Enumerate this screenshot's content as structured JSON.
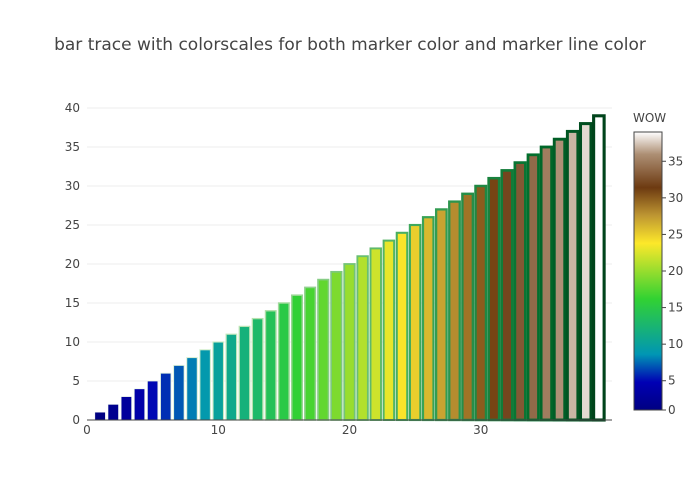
{
  "chart_data": {
    "type": "bar",
    "title": "bar trace with colorscales for both marker color and marker line color",
    "x": [
      1,
      2,
      3,
      4,
      5,
      6,
      7,
      8,
      9,
      10,
      11,
      12,
      13,
      14,
      15,
      16,
      17,
      18,
      19,
      20,
      21,
      22,
      23,
      24,
      25,
      26,
      27,
      28,
      29,
      30,
      31,
      32,
      33,
      34,
      35,
      36,
      37,
      38,
      39
    ],
    "values": [
      1,
      2,
      3,
      4,
      5,
      6,
      7,
      8,
      9,
      10,
      11,
      12,
      13,
      14,
      15,
      16,
      17,
      18,
      19,
      20,
      21,
      22,
      23,
      24,
      25,
      26,
      27,
      28,
      29,
      30,
      31,
      32,
      33,
      34,
      35,
      36,
      37,
      38,
      39
    ],
    "xlim": [
      0,
      40
    ],
    "ylim": [
      0,
      40
    ],
    "x_ticks": [
      "0",
      "10",
      "20",
      "30"
    ],
    "y_ticks": [
      "0",
      "5",
      "10",
      "15",
      "20",
      "25",
      "30",
      "35",
      "40"
    ],
    "grid": true,
    "marker_colorscale": {
      "name": "Earth",
      "stops": [
        [
          0,
          "#000082"
        ],
        [
          0.1,
          "#0000b4"
        ],
        [
          0.2,
          "#0096b4"
        ],
        [
          0.4,
          "#32d232"
        ],
        [
          0.6,
          "#fde82a"
        ],
        [
          0.7,
          "#be9632"
        ],
        [
          0.8,
          "#6d3a11"
        ],
        [
          0.92,
          "#ad8f74"
        ],
        [
          1,
          "#ffffff"
        ]
      ]
    },
    "line_colorscale": {
      "name": "Greens",
      "stops": [
        [
          0,
          "#f7fcf5"
        ],
        [
          0.125,
          "#e5f5e0"
        ],
        [
          0.25,
          "#c7e9c0"
        ],
        [
          0.375,
          "#a1d99b"
        ],
        [
          0.5,
          "#74c476"
        ],
        [
          0.625,
          "#41ab5d"
        ],
        [
          0.75,
          "#238b45"
        ],
        [
          0.875,
          "#006d2c"
        ],
        [
          1,
          "#00441b"
        ]
      ]
    },
    "colorbar": {
      "title": "WOW",
      "ticks": [
        "0",
        "5",
        "10",
        "15",
        "20",
        "25",
        "30",
        "35"
      ]
    }
  }
}
